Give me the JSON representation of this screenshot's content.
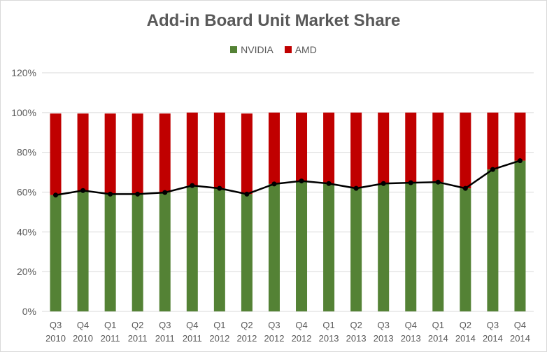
{
  "chart_data": {
    "type": "bar",
    "stacked": true,
    "title": "Add-in Board Unit Market Share",
    "xlabel": "",
    "ylabel": "",
    "ylim": [
      0,
      120
    ],
    "yticks": [
      "0%",
      "20%",
      "40%",
      "60%",
      "80%",
      "100%",
      "120%"
    ],
    "grid": true,
    "legend_position": "top",
    "categories": [
      [
        "Q3",
        "2010"
      ],
      [
        "Q4",
        "2010"
      ],
      [
        "Q1",
        "2011"
      ],
      [
        "Q2",
        "2011"
      ],
      [
        "Q3",
        "2011"
      ],
      [
        "Q4",
        "2011"
      ],
      [
        "Q1",
        "2012"
      ],
      [
        "Q2",
        "2012"
      ],
      [
        "Q3",
        "2012"
      ],
      [
        "Q4",
        "2012"
      ],
      [
        "Q1",
        "2013"
      ],
      [
        "Q2",
        "2013"
      ],
      [
        "Q3",
        "2013"
      ],
      [
        "Q4",
        "2013"
      ],
      [
        "Q1",
        "2014"
      ],
      [
        "Q2",
        "2014"
      ],
      [
        "Q3",
        "2014"
      ],
      [
        "Q4",
        "2014"
      ]
    ],
    "series": [
      {
        "name": "NVIDIA",
        "color": "#548235",
        "values": [
          58.5,
          60.8,
          59.0,
          59.0,
          59.8,
          63.3,
          61.9,
          59.0,
          64.1,
          65.6,
          64.3,
          61.9,
          64.3,
          64.7,
          65.0,
          61.9,
          71.4,
          75.8
        ]
      },
      {
        "name": "AMD",
        "color": "#c00000",
        "values": [
          41.0,
          38.7,
          40.5,
          40.5,
          39.7,
          36.7,
          38.1,
          40.5,
          35.9,
          34.4,
          35.7,
          38.1,
          35.7,
          35.3,
          35.0,
          38.1,
          28.6,
          24.2
        ]
      }
    ],
    "line": {
      "series": "NVIDIA",
      "color": "#000000"
    }
  }
}
